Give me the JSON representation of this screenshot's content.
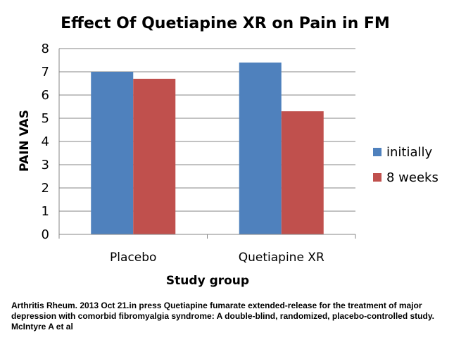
{
  "chart_data": {
    "type": "bar",
    "title": "Effect Of Quetiapine XR on Pain in FM",
    "xlabel": "Study group",
    "ylabel": "PAIN VAS",
    "categories": [
      "Placebo",
      "Quetiapine XR"
    ],
    "series": [
      {
        "name": "initially",
        "values": [
          7.0,
          7.4
        ],
        "color": "#4F81BD"
      },
      {
        "name": "8 weeks",
        "values": [
          6.7,
          5.3
        ],
        "color": "#C0504D"
      }
    ],
    "ylim": [
      0,
      8
    ],
    "yticks": [
      "0",
      "1",
      "2",
      "3",
      "4",
      "5",
      "6",
      "7",
      "8"
    ],
    "grid": true,
    "legend_position": "right"
  },
  "caption": "Arthritis Rheum. 2013 Oct 21.in press Quetiapine fumarate extended-release for the treatment of major depression with comorbid fibromyalgia syndrome: A double-blind, randomized, placebo-controlled study. McIntyre A et al"
}
